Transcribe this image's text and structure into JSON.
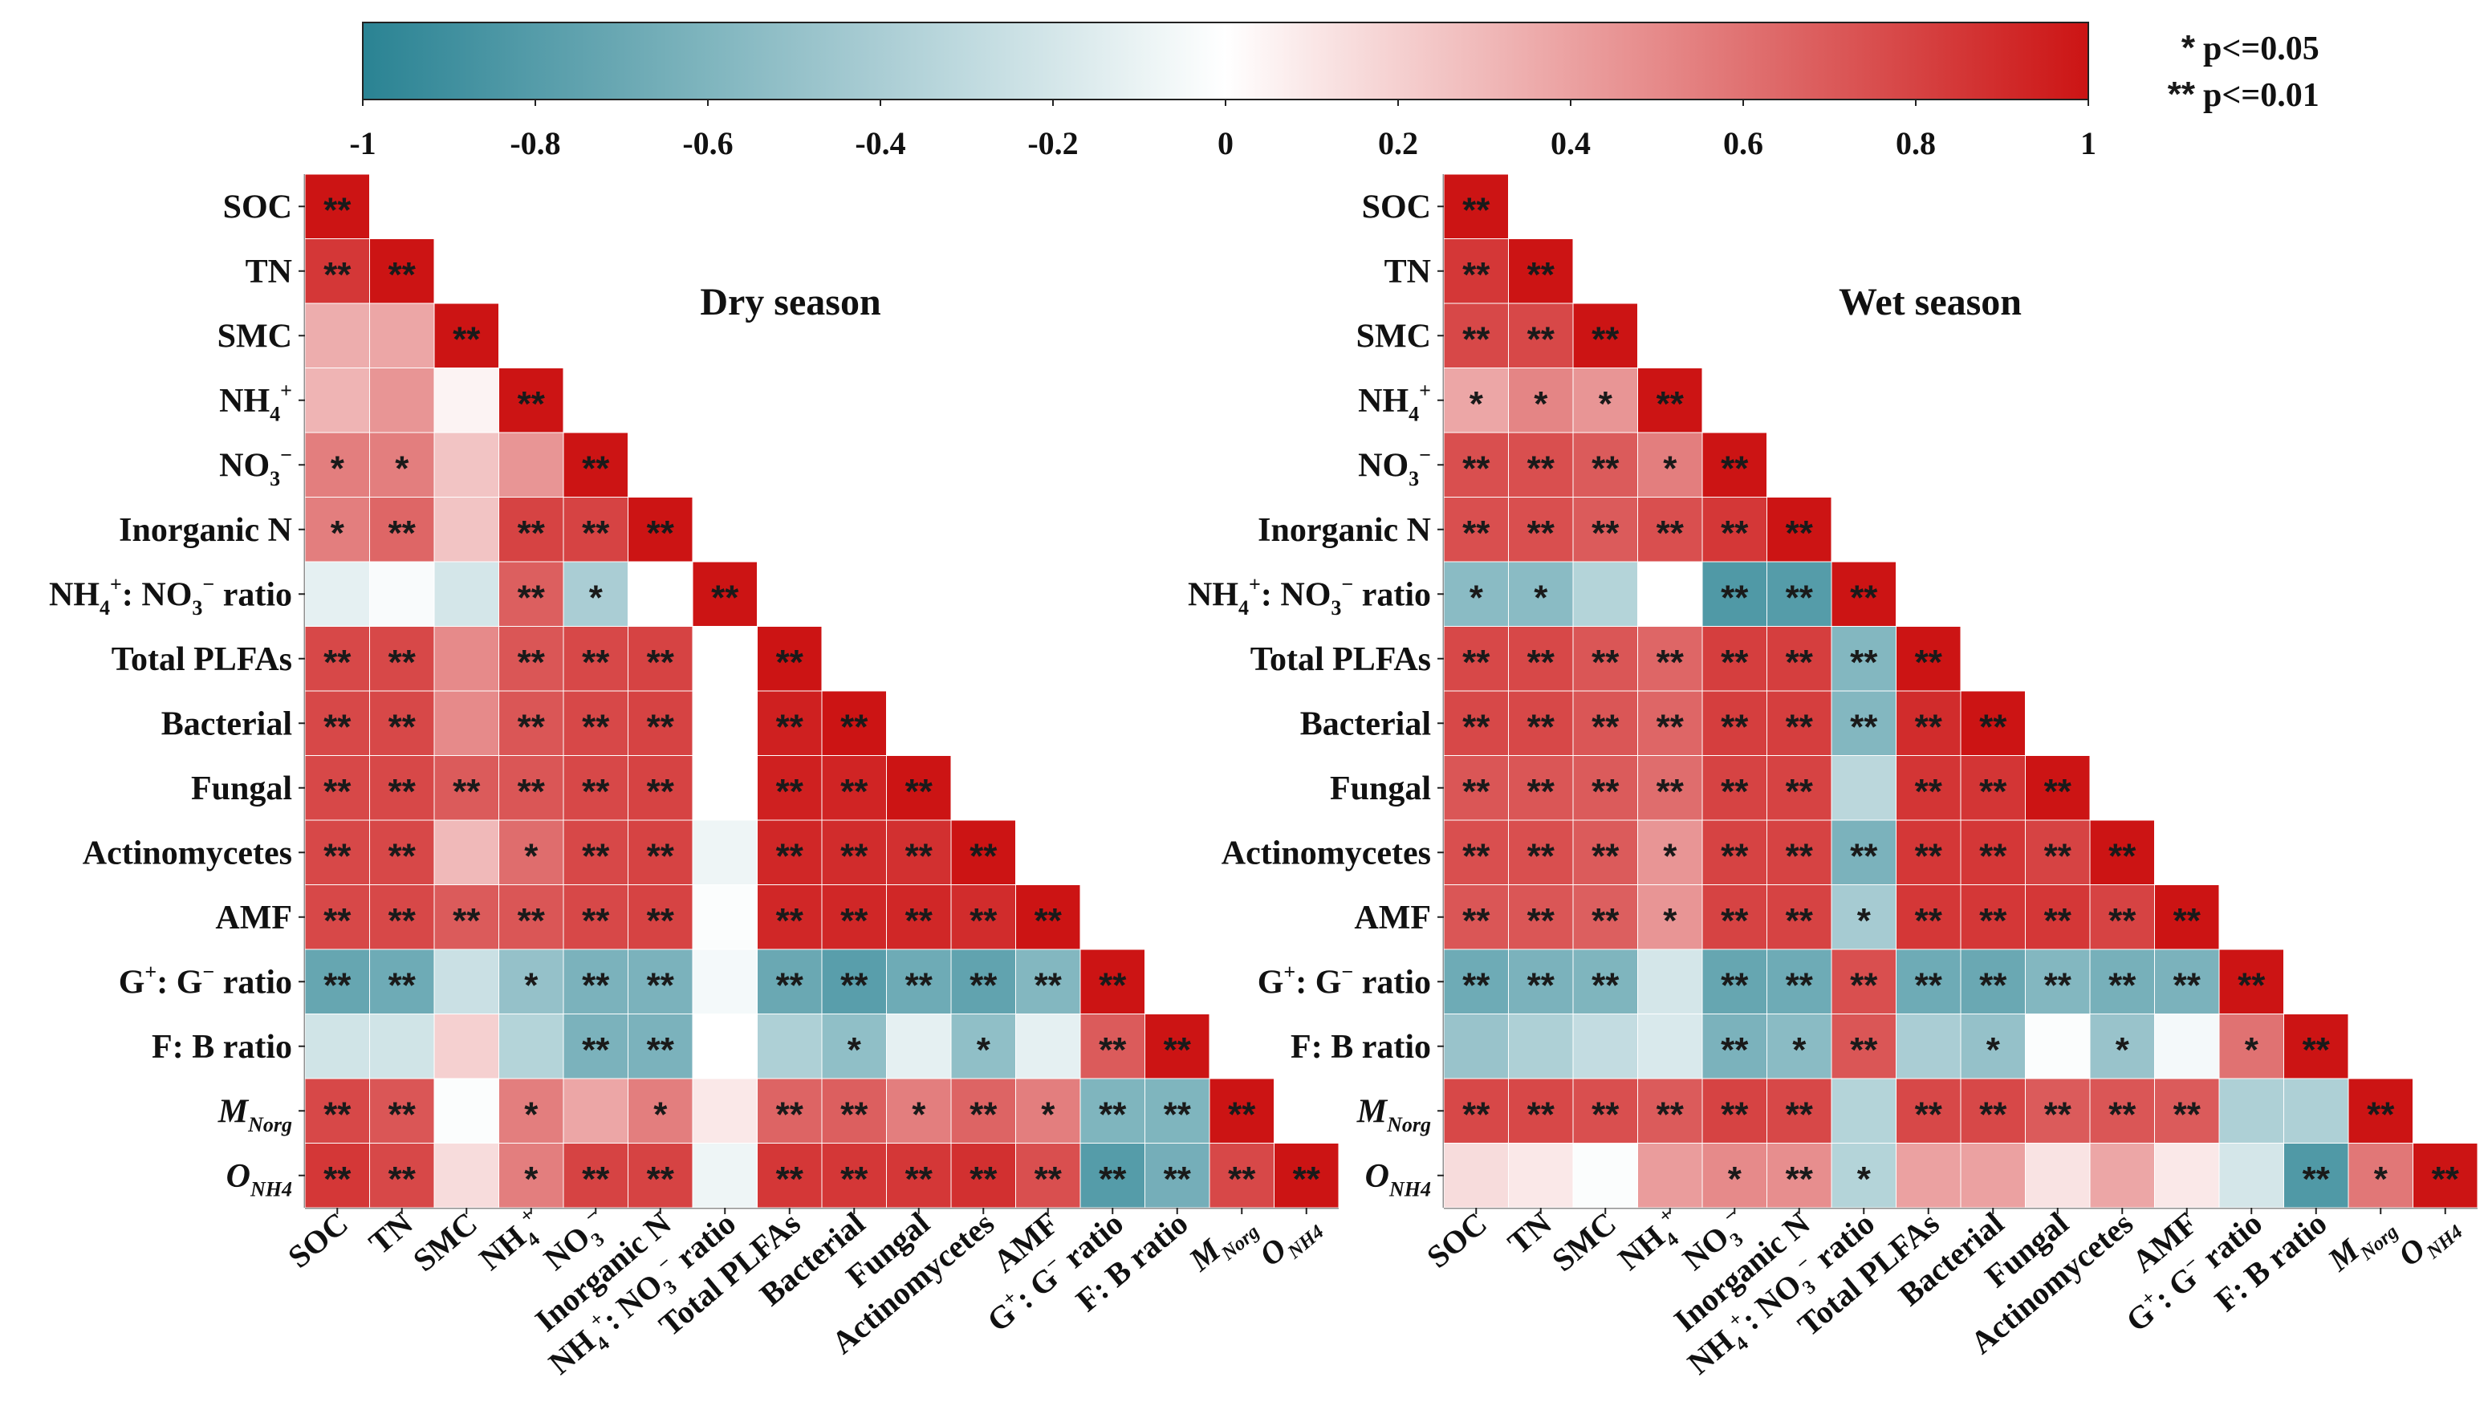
{
  "chart_data": {
    "type": "heatmap",
    "colorbar": {
      "min": -1,
      "max": 1,
      "ticks": [
        -1,
        -0.8,
        -0.6,
        -0.4,
        -0.2,
        0,
        0.2,
        0.4,
        0.6,
        0.8,
        1
      ],
      "tick_labels": [
        "-1",
        "-0.8",
        "-0.6",
        "-0.4",
        "-0.2",
        "0",
        "0.2",
        "0.4",
        "0.6",
        "0.8",
        "1"
      ],
      "neg_color": "#2a8393",
      "mid_color": "#ffffff",
      "pos_color": "#cc1414"
    },
    "significance_legend": [
      {
        "stars": "*",
        "label": "p<=0.05"
      },
      {
        "stars": "**",
        "label": "p<=0.01"
      }
    ],
    "variables": [
      "SOC",
      "TN",
      "SMC",
      "NH4+",
      "NO3−",
      "Inorganic N",
      "NH4+: NO3− ratio",
      "Total PLFAs",
      "Bacterial",
      "Fungal",
      "Actinomycetes",
      "AMF",
      "G+: G− ratio",
      "F: B ratio",
      "MNorg",
      "ONH4"
    ],
    "panels": [
      {
        "title": "Dry season",
        "values": [
          [
            1
          ],
          [
            0.85,
            1
          ],
          [
            0.35,
            0.38,
            1
          ],
          [
            0.32,
            0.45,
            0.05,
            1
          ],
          [
            0.55,
            0.55,
            0.25,
            0.45,
            1
          ],
          [
            0.55,
            0.65,
            0.25,
            0.8,
            0.8,
            1
          ],
          [
            -0.12,
            -0.03,
            -0.2,
            0.68,
            -0.4,
            0.0,
            1
          ],
          [
            0.78,
            0.78,
            0.5,
            0.72,
            0.78,
            0.8,
            0.0,
            1
          ],
          [
            0.78,
            0.78,
            0.5,
            0.72,
            0.78,
            0.8,
            0.0,
            0.95,
            1
          ],
          [
            0.78,
            0.78,
            0.7,
            0.72,
            0.78,
            0.8,
            0.0,
            0.95,
            0.93,
            1
          ],
          [
            0.78,
            0.78,
            0.3,
            0.62,
            0.78,
            0.8,
            -0.08,
            0.92,
            0.9,
            0.88,
            1
          ],
          [
            0.78,
            0.78,
            0.7,
            0.72,
            0.78,
            0.8,
            -0.02,
            0.92,
            0.92,
            0.92,
            0.9,
            1
          ],
          [
            -0.72,
            -0.68,
            -0.25,
            -0.5,
            -0.62,
            -0.62,
            -0.05,
            -0.7,
            -0.78,
            -0.68,
            -0.74,
            -0.58,
            1
          ],
          [
            -0.22,
            -0.22,
            0.2,
            -0.35,
            -0.62,
            -0.62,
            0.0,
            -0.38,
            -0.52,
            -0.12,
            -0.52,
            -0.12,
            0.7,
            1
          ],
          [
            0.78,
            0.72,
            -0.02,
            0.55,
            0.38,
            0.55,
            0.1,
            0.66,
            0.68,
            0.55,
            0.66,
            0.55,
            -0.6,
            -0.6,
            1
          ],
          [
            0.85,
            0.78,
            0.15,
            0.55,
            0.8,
            0.8,
            -0.08,
            0.85,
            0.85,
            0.85,
            0.88,
            0.75,
            -0.8,
            -0.65,
            0.78,
            1
          ]
        ],
        "stars": [
          [
            "**"
          ],
          [
            "**",
            "**"
          ],
          [
            "",
            "",
            "**"
          ],
          [
            "",
            "",
            "",
            "**"
          ],
          [
            "*",
            "*",
            "",
            "",
            "**"
          ],
          [
            "*",
            "**",
            "",
            "**",
            "**",
            "**"
          ],
          [
            "",
            "",
            "",
            "**",
            "*",
            "",
            "**"
          ],
          [
            "**",
            "**",
            "",
            "**",
            "**",
            "**",
            "",
            "**"
          ],
          [
            "**",
            "**",
            "",
            "**",
            "**",
            "**",
            "",
            "**",
            "**"
          ],
          [
            "**",
            "**",
            "**",
            "**",
            "**",
            "**",
            "",
            "**",
            "**",
            "**"
          ],
          [
            "**",
            "**",
            "",
            "*",
            "**",
            "**",
            "",
            "**",
            "**",
            "**",
            "**"
          ],
          [
            "**",
            "**",
            "**",
            "**",
            "**",
            "**",
            "",
            "**",
            "**",
            "**",
            "**",
            "**"
          ],
          [
            "**",
            "**",
            "",
            "*",
            "**",
            "**",
            "",
            "**",
            "**",
            "**",
            "**",
            "**",
            "**"
          ],
          [
            "",
            "",
            "",
            "",
            "**",
            "**",
            "",
            "",
            "*",
            "",
            "*",
            "",
            "**",
            "**"
          ],
          [
            "**",
            "**",
            "",
            "*",
            "",
            "*",
            "",
            "**",
            "**",
            "*",
            "**",
            "*",
            "**",
            "**",
            "**"
          ],
          [
            "**",
            "**",
            "",
            "*",
            "**",
            "**",
            "",
            "**",
            "**",
            "**",
            "**",
            "**",
            "**",
            "**",
            "**",
            "**"
          ]
        ]
      },
      {
        "title": "Wet season",
        "values": [
          [
            1
          ],
          [
            0.85,
            1
          ],
          [
            0.78,
            0.78,
            1
          ],
          [
            0.38,
            0.52,
            0.45,
            1
          ],
          [
            0.75,
            0.75,
            0.7,
            0.55,
            1
          ],
          [
            0.75,
            0.75,
            0.7,
            0.75,
            0.85,
            1
          ],
          [
            -0.55,
            -0.55,
            -0.35,
            0.0,
            -0.82,
            -0.8,
            1
          ],
          [
            0.78,
            0.78,
            0.72,
            0.65,
            0.82,
            0.82,
            -0.58,
            1
          ],
          [
            0.78,
            0.78,
            0.72,
            0.65,
            0.82,
            0.82,
            -0.58,
            0.9,
            1
          ],
          [
            0.72,
            0.72,
            0.7,
            0.62,
            0.8,
            0.8,
            -0.32,
            0.86,
            0.86,
            1
          ],
          [
            0.75,
            0.75,
            0.7,
            0.45,
            0.8,
            0.8,
            -0.62,
            0.85,
            0.85,
            0.8,
            1
          ],
          [
            0.72,
            0.72,
            0.68,
            0.45,
            0.8,
            0.8,
            -0.42,
            0.85,
            0.85,
            0.85,
            0.8,
            1
          ],
          [
            -0.68,
            -0.62,
            -0.6,
            -0.2,
            -0.72,
            -0.68,
            0.75,
            -0.68,
            -0.7,
            -0.58,
            -0.64,
            -0.62,
            1
          ],
          [
            -0.48,
            -0.38,
            -0.28,
            -0.18,
            -0.62,
            -0.55,
            0.72,
            -0.4,
            -0.5,
            -0.02,
            -0.48,
            -0.05,
            0.6,
            1
          ],
          [
            0.78,
            0.78,
            0.75,
            0.7,
            0.8,
            0.78,
            -0.35,
            0.78,
            0.78,
            0.7,
            0.72,
            0.7,
            -0.38,
            -0.38,
            1
          ],
          [
            0.15,
            0.1,
            -0.02,
            0.42,
            0.5,
            0.48,
            -0.35,
            0.4,
            0.4,
            0.12,
            0.38,
            0.1,
            -0.2,
            -0.82,
            0.58,
            1
          ]
        ],
        "stars": [
          [
            "**"
          ],
          [
            "**",
            "**"
          ],
          [
            "**",
            "**",
            "**"
          ],
          [
            "*",
            "*",
            "*",
            "**"
          ],
          [
            "**",
            "**",
            "**",
            "*",
            "**"
          ],
          [
            "**",
            "**",
            "**",
            "**",
            "**",
            "**"
          ],
          [
            "*",
            "*",
            "",
            "",
            "**",
            "**",
            "**"
          ],
          [
            "**",
            "**",
            "**",
            "**",
            "**",
            "**",
            "**",
            "**"
          ],
          [
            "**",
            "**",
            "**",
            "**",
            "**",
            "**",
            "**",
            "**",
            "**"
          ],
          [
            "**",
            "**",
            "**",
            "**",
            "**",
            "**",
            "",
            "**",
            "**",
            "**"
          ],
          [
            "**",
            "**",
            "**",
            "*",
            "**",
            "**",
            "**",
            "**",
            "**",
            "**",
            "**"
          ],
          [
            "**",
            "**",
            "**",
            "*",
            "**",
            "**",
            "*",
            "**",
            "**",
            "**",
            "**",
            "**"
          ],
          [
            "**",
            "**",
            "**",
            "",
            "**",
            "**",
            "**",
            "**",
            "**",
            "**",
            "**",
            "**",
            "**"
          ],
          [
            "",
            "",
            "",
            "",
            "**",
            "*",
            "**",
            "",
            "*",
            "",
            "*",
            "",
            "*",
            "**"
          ],
          [
            "**",
            "**",
            "**",
            "**",
            "**",
            "**",
            "",
            "**",
            "**",
            "**",
            "**",
            "**",
            "",
            "",
            "**"
          ],
          [
            "",
            "",
            "",
            "",
            "*",
            "**",
            "*",
            "",
            "",
            "",
            "",
            "",
            "",
            "**",
            "*",
            "**"
          ]
        ]
      }
    ]
  }
}
